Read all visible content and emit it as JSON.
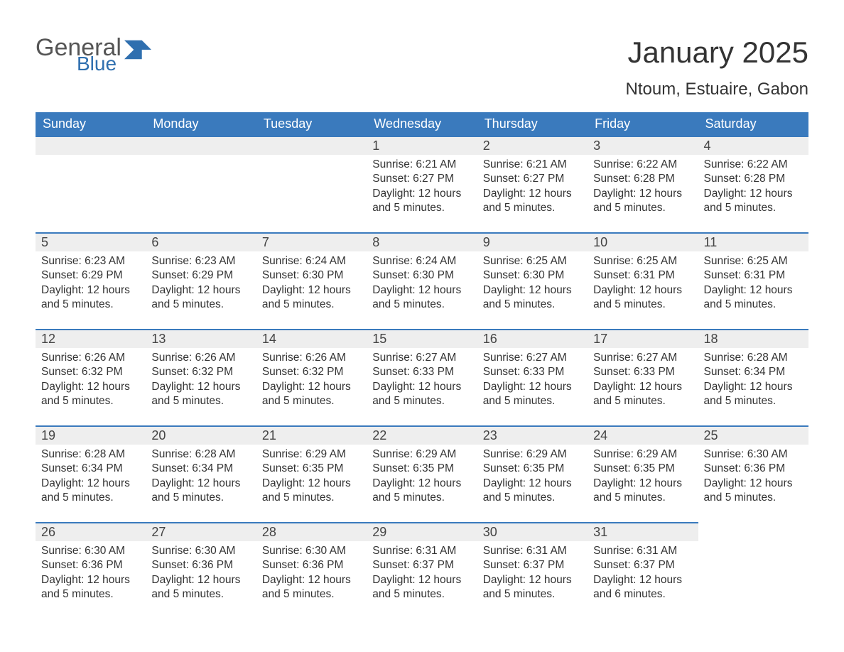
{
  "colors": {
    "header_bg": "#3a7abd",
    "header_text": "#ffffff",
    "daynum_bg": "#eeeeee",
    "day_border_top": "#3a7abd",
    "body_text": "#333333",
    "logo_gray": "#555555",
    "logo_blue": "#2f6faf",
    "page_bg": "#ffffff"
  },
  "typography": {
    "month_title_pt": 42,
    "location_pt": 24,
    "weekday_header_pt": 18,
    "daynum_pt": 18,
    "body_pt": 15.5,
    "font_family": "Arial"
  },
  "logo": {
    "text1": "General",
    "text2": "Blue"
  },
  "header": {
    "month_title": "January 2025",
    "location": "Ntoum, Estuaire, Gabon"
  },
  "weekday_labels": [
    "Sunday",
    "Monday",
    "Tuesday",
    "Wednesday",
    "Thursday",
    "Friday",
    "Saturday"
  ],
  "labels": {
    "sunrise_prefix": "Sunrise: ",
    "sunset_prefix": "Sunset: ",
    "daylight_prefix": "Daylight: "
  },
  "weeks": [
    [
      {
        "blank": true
      },
      {
        "blank": true
      },
      {
        "blank": true
      },
      {
        "day": "1",
        "sunrise": "6:21 AM",
        "sunset": "6:27 PM",
        "daylight": "12 hours and 5 minutes."
      },
      {
        "day": "2",
        "sunrise": "6:21 AM",
        "sunset": "6:27 PM",
        "daylight": "12 hours and 5 minutes."
      },
      {
        "day": "3",
        "sunrise": "6:22 AM",
        "sunset": "6:28 PM",
        "daylight": "12 hours and 5 minutes."
      },
      {
        "day": "4",
        "sunrise": "6:22 AM",
        "sunset": "6:28 PM",
        "daylight": "12 hours and 5 minutes."
      }
    ],
    [
      {
        "day": "5",
        "sunrise": "6:23 AM",
        "sunset": "6:29 PM",
        "daylight": "12 hours and 5 minutes."
      },
      {
        "day": "6",
        "sunrise": "6:23 AM",
        "sunset": "6:29 PM",
        "daylight": "12 hours and 5 minutes."
      },
      {
        "day": "7",
        "sunrise": "6:24 AM",
        "sunset": "6:30 PM",
        "daylight": "12 hours and 5 minutes."
      },
      {
        "day": "8",
        "sunrise": "6:24 AM",
        "sunset": "6:30 PM",
        "daylight": "12 hours and 5 minutes."
      },
      {
        "day": "9",
        "sunrise": "6:25 AM",
        "sunset": "6:30 PM",
        "daylight": "12 hours and 5 minutes."
      },
      {
        "day": "10",
        "sunrise": "6:25 AM",
        "sunset": "6:31 PM",
        "daylight": "12 hours and 5 minutes."
      },
      {
        "day": "11",
        "sunrise": "6:25 AM",
        "sunset": "6:31 PM",
        "daylight": "12 hours and 5 minutes."
      }
    ],
    [
      {
        "day": "12",
        "sunrise": "6:26 AM",
        "sunset": "6:32 PM",
        "daylight": "12 hours and 5 minutes."
      },
      {
        "day": "13",
        "sunrise": "6:26 AM",
        "sunset": "6:32 PM",
        "daylight": "12 hours and 5 minutes."
      },
      {
        "day": "14",
        "sunrise": "6:26 AM",
        "sunset": "6:32 PM",
        "daylight": "12 hours and 5 minutes."
      },
      {
        "day": "15",
        "sunrise": "6:27 AM",
        "sunset": "6:33 PM",
        "daylight": "12 hours and 5 minutes."
      },
      {
        "day": "16",
        "sunrise": "6:27 AM",
        "sunset": "6:33 PM",
        "daylight": "12 hours and 5 minutes."
      },
      {
        "day": "17",
        "sunrise": "6:27 AM",
        "sunset": "6:33 PM",
        "daylight": "12 hours and 5 minutes."
      },
      {
        "day": "18",
        "sunrise": "6:28 AM",
        "sunset": "6:34 PM",
        "daylight": "12 hours and 5 minutes."
      }
    ],
    [
      {
        "day": "19",
        "sunrise": "6:28 AM",
        "sunset": "6:34 PM",
        "daylight": "12 hours and 5 minutes."
      },
      {
        "day": "20",
        "sunrise": "6:28 AM",
        "sunset": "6:34 PM",
        "daylight": "12 hours and 5 minutes."
      },
      {
        "day": "21",
        "sunrise": "6:29 AM",
        "sunset": "6:35 PM",
        "daylight": "12 hours and 5 minutes."
      },
      {
        "day": "22",
        "sunrise": "6:29 AM",
        "sunset": "6:35 PM",
        "daylight": "12 hours and 5 minutes."
      },
      {
        "day": "23",
        "sunrise": "6:29 AM",
        "sunset": "6:35 PM",
        "daylight": "12 hours and 5 minutes."
      },
      {
        "day": "24",
        "sunrise": "6:29 AM",
        "sunset": "6:35 PM",
        "daylight": "12 hours and 5 minutes."
      },
      {
        "day": "25",
        "sunrise": "6:30 AM",
        "sunset": "6:36 PM",
        "daylight": "12 hours and 5 minutes."
      }
    ],
    [
      {
        "day": "26",
        "sunrise": "6:30 AM",
        "sunset": "6:36 PM",
        "daylight": "12 hours and 5 minutes."
      },
      {
        "day": "27",
        "sunrise": "6:30 AM",
        "sunset": "6:36 PM",
        "daylight": "12 hours and 5 minutes."
      },
      {
        "day": "28",
        "sunrise": "6:30 AM",
        "sunset": "6:36 PM",
        "daylight": "12 hours and 5 minutes."
      },
      {
        "day": "29",
        "sunrise": "6:31 AM",
        "sunset": "6:37 PM",
        "daylight": "12 hours and 5 minutes."
      },
      {
        "day": "30",
        "sunrise": "6:31 AM",
        "sunset": "6:37 PM",
        "daylight": "12 hours and 5 minutes."
      },
      {
        "day": "31",
        "sunrise": "6:31 AM",
        "sunset": "6:37 PM",
        "daylight": "12 hours and 6 minutes."
      },
      {
        "blank": true
      }
    ]
  ]
}
